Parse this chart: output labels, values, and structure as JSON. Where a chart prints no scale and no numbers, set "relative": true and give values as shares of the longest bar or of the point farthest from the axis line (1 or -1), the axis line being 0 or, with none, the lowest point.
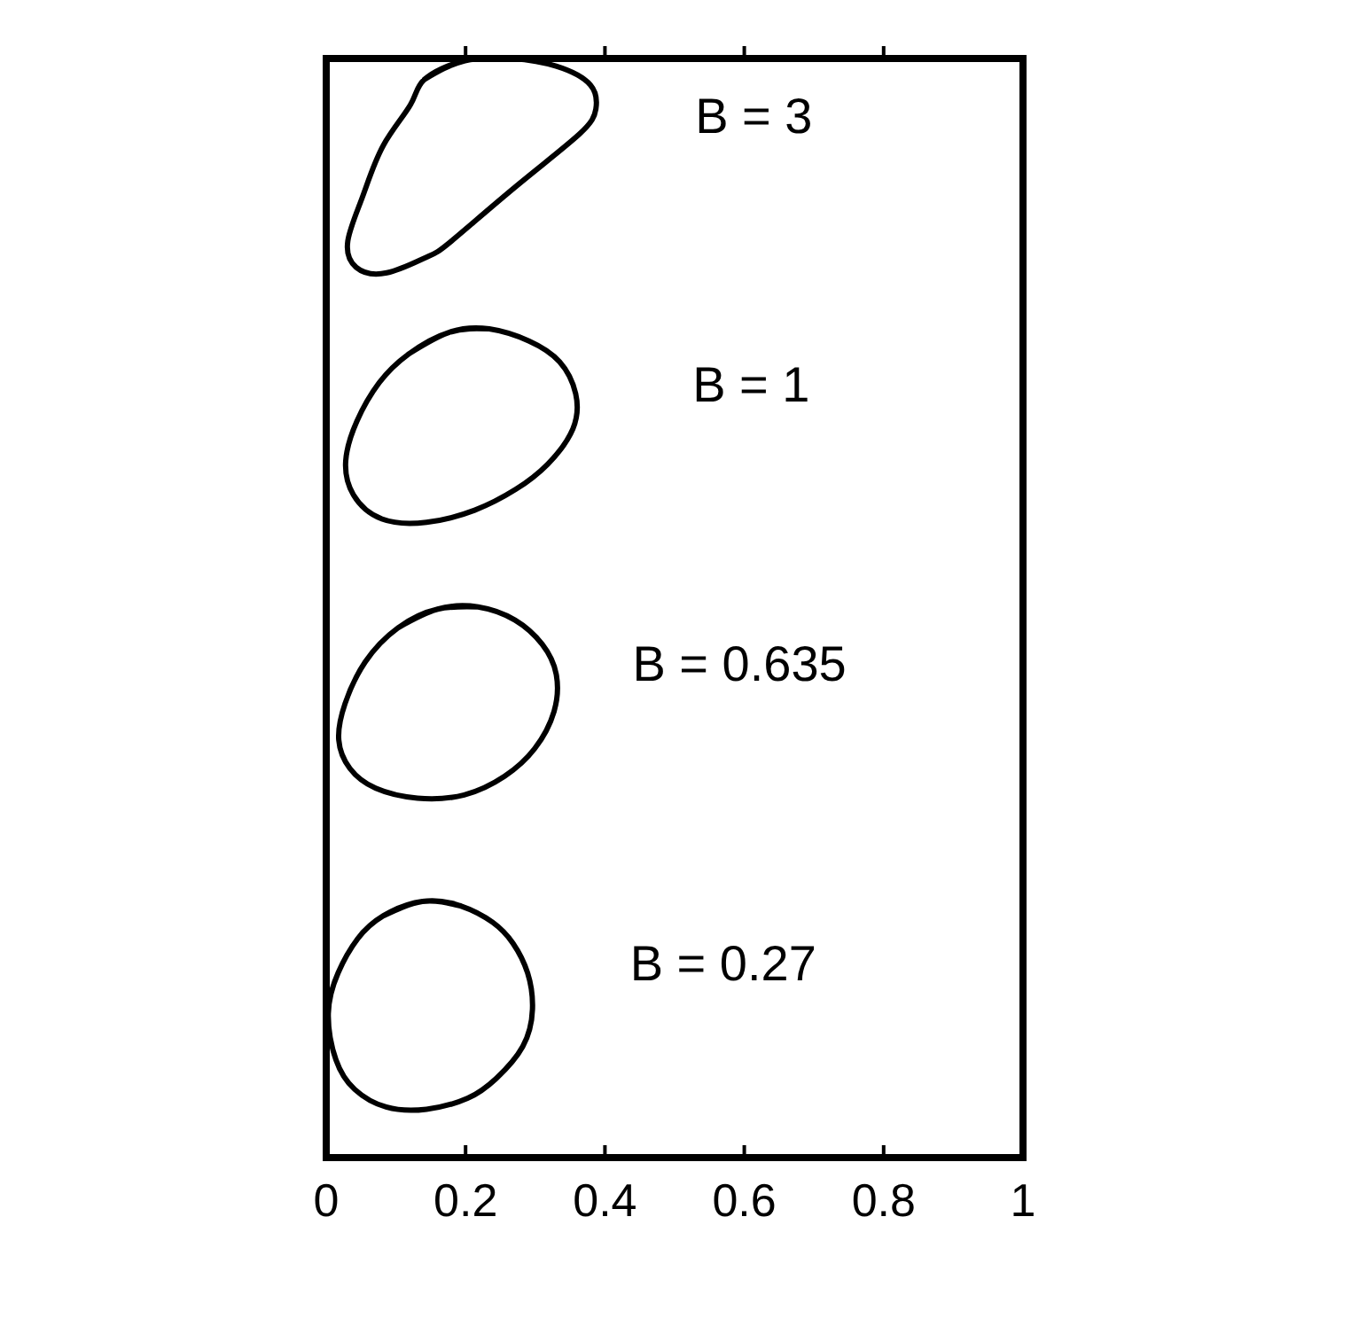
{
  "chart_data": {
    "type": "line",
    "relative": true,
    "xlim": [
      0,
      1
    ],
    "xticks": [
      0,
      0.2,
      0.4,
      0.6,
      0.8,
      1
    ],
    "marker": "none",
    "series": [
      {
        "name": "B = 0.27",
        "color": "#000000",
        "x": [
          0.082,
          0.138,
          0.193,
          0.239,
          0.268,
          0.289,
          0.296,
          0.282,
          0.244,
          0.203,
          0.144,
          0.086,
          0.041,
          0.014,
          0.003,
          0.017,
          0.045,
          0.082,
          0.138,
          0.193
        ],
        "values": [
          0.22,
          0.233,
          0.229,
          0.214,
          0.195,
          0.168,
          0.135,
          0.101,
          0.072,
          0.054,
          0.044,
          0.046,
          0.062,
          0.089,
          0.131,
          0.168,
          0.199,
          0.22,
          0.233,
          0.229
        ]
      },
      {
        "name": "B = 0.635",
        "color": "#000000",
        "x": [
          0.103,
          0.16,
          0.218,
          0.271,
          0.31,
          0.33,
          0.327,
          0.299,
          0.256,
          0.198,
          0.131,
          0.071,
          0.034,
          0.018,
          0.027,
          0.056,
          0.103,
          0.16,
          0.218
        ],
        "values": [
          0.482,
          0.499,
          0.501,
          0.489,
          0.467,
          0.44,
          0.406,
          0.372,
          0.347,
          0.33,
          0.327,
          0.336,
          0.354,
          0.38,
          0.413,
          0.451,
          0.482,
          0.499,
          0.501
        ]
      },
      {
        "name": "B = 1",
        "color": "#000000",
        "x": [
          0.118,
          0.177,
          0.234,
          0.291,
          0.335,
          0.358,
          0.354,
          0.318,
          0.272,
          0.213,
          0.144,
          0.08,
          0.039,
          0.028,
          0.044,
          0.076,
          0.118,
          0.177,
          0.234
        ],
        "values": [
          0.731,
          0.751,
          0.754,
          0.743,
          0.724,
          0.695,
          0.663,
          0.631,
          0.608,
          0.589,
          0.578,
          0.581,
          0.603,
          0.634,
          0.67,
          0.705,
          0.731,
          0.751,
          0.754
        ]
      },
      {
        "name": "B = 3",
        "color": "#000000",
        "x": [
          0.141,
          0.199,
          0.267,
          0.33,
          0.379,
          0.387,
          0.363,
          0.273,
          0.178,
          0.143,
          0.087,
          0.043,
          0.031,
          0.052,
          0.082,
          0.121,
          0.141,
          0.199,
          0.267
        ],
        "values": [
          0.981,
          0.998,
          1,
          0.993,
          0.976,
          0.954,
          0.931,
          0.884,
          0.833,
          0.819,
          0.805,
          0.81,
          0.834,
          0.874,
          0.921,
          0.958,
          0.981,
          0.998,
          1
        ]
      }
    ]
  }
}
